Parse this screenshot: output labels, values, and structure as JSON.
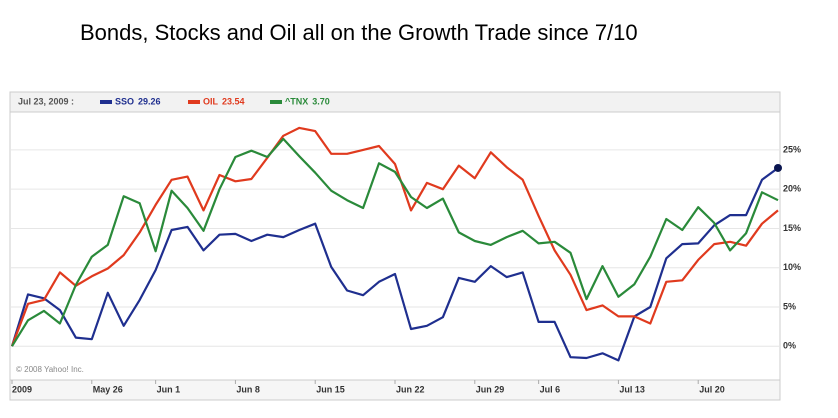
{
  "chart_data": {
    "type": "line",
    "title": "Bonds, Stocks and Oil all on the Growth Trade since 7/10",
    "legend_date": "Jul 23, 2009 :",
    "copyright": "© 2008 Yahoo! Inc.",
    "categories": [
      "2009",
      null,
      null,
      null,
      null,
      "May 26",
      null,
      null,
      null,
      "Jun 1",
      null,
      null,
      null,
      null,
      "Jun 8",
      null,
      null,
      null,
      null,
      "Jun 15",
      null,
      null,
      null,
      null,
      "Jun 22",
      null,
      null,
      null,
      null,
      "Jun 29",
      null,
      null,
      null,
      "Jul 6",
      null,
      null,
      null,
      null,
      "Jul 13",
      null,
      null,
      null,
      null,
      "Jul 20",
      null,
      null,
      null,
      null,
      null
    ],
    "series": [
      {
        "name": "SSO",
        "last": "29.26",
        "color": "#1f2f8f",
        "values": [
          0,
          6.6,
          6.1,
          4.6,
          1.1,
          0.9,
          6.8,
          2.6,
          5.9,
          9.7,
          14.8,
          15.2,
          12.2,
          14.2,
          14.3,
          13.4,
          14.2,
          13.9,
          14.8,
          15.6,
          10.1,
          7.1,
          6.5,
          8.2,
          9.2,
          2.2,
          2.6,
          3.7,
          8.7,
          8.2,
          10.2,
          8.8,
          9.4,
          3.1,
          3.1,
          -1.4,
          -1.5,
          -0.9,
          -1.8,
          3.8,
          5.0,
          11.2,
          13.0,
          13.1,
          15.4,
          16.7,
          16.7,
          21.2,
          22.7
        ]
      },
      {
        "name": "OIL",
        "last": "23.54",
        "color": "#e03a1e",
        "values": [
          0,
          5.4,
          5.9,
          9.4,
          7.7,
          8.9,
          9.9,
          11.6,
          14.5,
          18.0,
          21.2,
          21.6,
          17.3,
          21.8,
          21.0,
          21.3,
          24.0,
          26.8,
          27.8,
          27.4,
          24.5,
          24.5,
          25.0,
          25.5,
          23.2,
          17.3,
          20.8,
          20.0,
          23.0,
          21.4,
          24.7,
          22.8,
          21.2,
          16.6,
          12.2,
          9.1,
          4.6,
          5.2,
          3.8,
          3.8,
          2.9,
          8.2,
          8.4,
          11.0,
          13.0,
          13.3,
          12.8,
          15.6,
          17.3
        ]
      },
      {
        "name": "^TNX",
        "last": "3.70",
        "color": "#2a8a3a",
        "values": [
          0,
          3.3,
          4.5,
          2.9,
          7.8,
          11.4,
          12.9,
          19.1,
          18.2,
          12.1,
          19.8,
          17.6,
          14.7,
          20.0,
          24.1,
          24.9,
          24.1,
          26.4,
          24.2,
          22.1,
          19.8,
          18.6,
          17.6,
          23.3,
          22.2,
          19.0,
          17.6,
          18.8,
          14.5,
          13.4,
          12.9,
          13.9,
          14.7,
          13.1,
          13.3,
          11.9,
          6.0,
          10.2,
          6.3,
          7.9,
          11.4,
          16.2,
          14.8,
          17.7,
          15.7,
          12.2,
          14.4,
          19.6,
          18.6
        ]
      }
    ],
    "ylim": [
      -4.3,
      29.7
    ],
    "yticks": [
      {
        "value": 0,
        "label": "0%"
      },
      {
        "value": 5,
        "label": "5%"
      },
      {
        "value": 10,
        "label": "10%"
      },
      {
        "value": 15,
        "label": "15%"
      },
      {
        "value": 20,
        "label": "20%"
      },
      {
        "value": 25,
        "label": "25%"
      }
    ],
    "grid": true
  }
}
